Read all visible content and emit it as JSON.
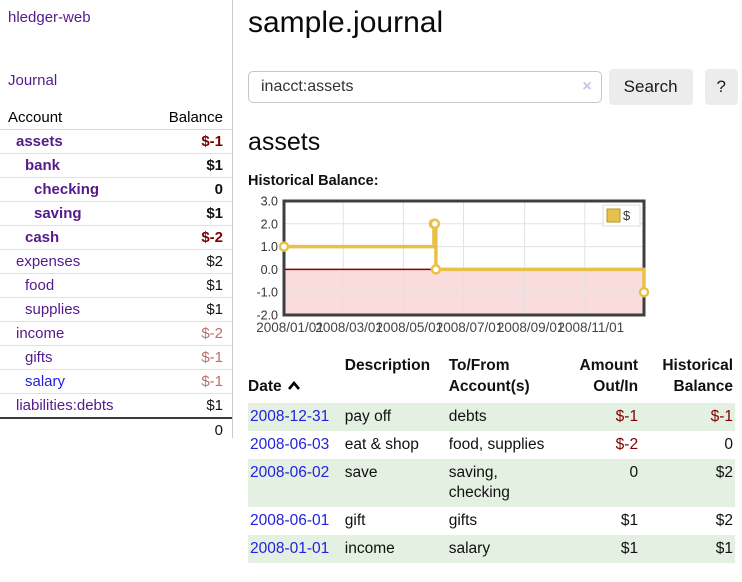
{
  "colors": {
    "accent_purple": "#551a8b",
    "link_blue": "#2222dd",
    "negative_strong": "#800000",
    "negative_muted": "#b97070",
    "row_stripe_green": "#e4f0e2",
    "chart_line_gold": "#e6c24a",
    "chart_negative_region": "#fbdcdc",
    "chart_zero_line": "#8b0000"
  },
  "sidebar": {
    "brand": "hledger-web",
    "nav_journal": "Journal",
    "table": {
      "account_header": "Account",
      "balance_header": "Balance",
      "rows": [
        {
          "account": "assets",
          "balance": "$-1"
        },
        {
          "account": "bank",
          "balance": "$1"
        },
        {
          "account": "checking",
          "balance": "0"
        },
        {
          "account": "saving",
          "balance": "$1"
        },
        {
          "account": "cash",
          "balance": "$-2"
        },
        {
          "account": "expenses",
          "balance": "$2"
        },
        {
          "account": "food",
          "balance": "$1"
        },
        {
          "account": "supplies",
          "balance": "$1"
        },
        {
          "account": "income",
          "balance": "$-2"
        },
        {
          "account": "gifts",
          "balance": "$-1"
        },
        {
          "account": "salary",
          "balance": "$-1"
        },
        {
          "account": "liabilities:debts",
          "balance": "$1"
        }
      ],
      "total": "0"
    }
  },
  "main": {
    "title": "sample.journal",
    "search": {
      "value": "inacct:assets",
      "clear_icon": "×",
      "button_label": "Search",
      "help_label": "?"
    },
    "account_heading": "assets",
    "chart_label": "Historical Balance:"
  },
  "chart_data": {
    "type": "line",
    "title": "Historical Balance:",
    "step": true,
    "series": [
      {
        "name": "$",
        "color": "#e6c24a",
        "points": [
          [
            "2008-01-01",
            1
          ],
          [
            "2008-06-01",
            2
          ],
          [
            "2008-06-02",
            2
          ],
          [
            "2008-06-03",
            0
          ],
          [
            "2008-12-31",
            -1
          ]
        ]
      }
    ],
    "x_range": [
      "2008-01-01",
      "2008-12-31"
    ],
    "x_ticks": [
      "2008/01/01",
      "2008/03/01",
      "2008/05/01",
      "2008/07/01",
      "2008/09/01",
      "2008/11/01"
    ],
    "y_ticks": [
      "3.0",
      "2.0",
      "1.0",
      "0.0",
      "-1.0",
      "-2.0"
    ],
    "ylim": [
      -2.0,
      3.0
    ],
    "legend": {
      "label": "$",
      "position": "top-right"
    },
    "grid": true,
    "negative_region_color": "#fbdcdc",
    "zero_line_color": "#8b0000"
  },
  "register": {
    "headers": {
      "date": "Date",
      "sort_icon": "chevron-up",
      "description": "Description",
      "tofrom": "To/From\nAccount(s)",
      "amount": "Amount\nOut/In",
      "balance": "Historical\nBalance"
    },
    "rows": [
      {
        "date": "2008-12-31",
        "description": "pay off",
        "accounts": "debts",
        "amount": "$-1",
        "balance": "$-1"
      },
      {
        "date": "2008-06-03",
        "description": "eat & shop",
        "accounts": "food, supplies",
        "amount": "$-2",
        "balance": "0"
      },
      {
        "date": "2008-06-02",
        "description": "save",
        "accounts": "saving,\nchecking",
        "amount": "0",
        "balance": "$2"
      },
      {
        "date": "2008-06-01",
        "description": "gift",
        "accounts": "gifts",
        "amount": "$1",
        "balance": "$2"
      },
      {
        "date": "2008-01-01",
        "description": "income",
        "accounts": "salary",
        "amount": "$1",
        "balance": "$1"
      }
    ]
  }
}
